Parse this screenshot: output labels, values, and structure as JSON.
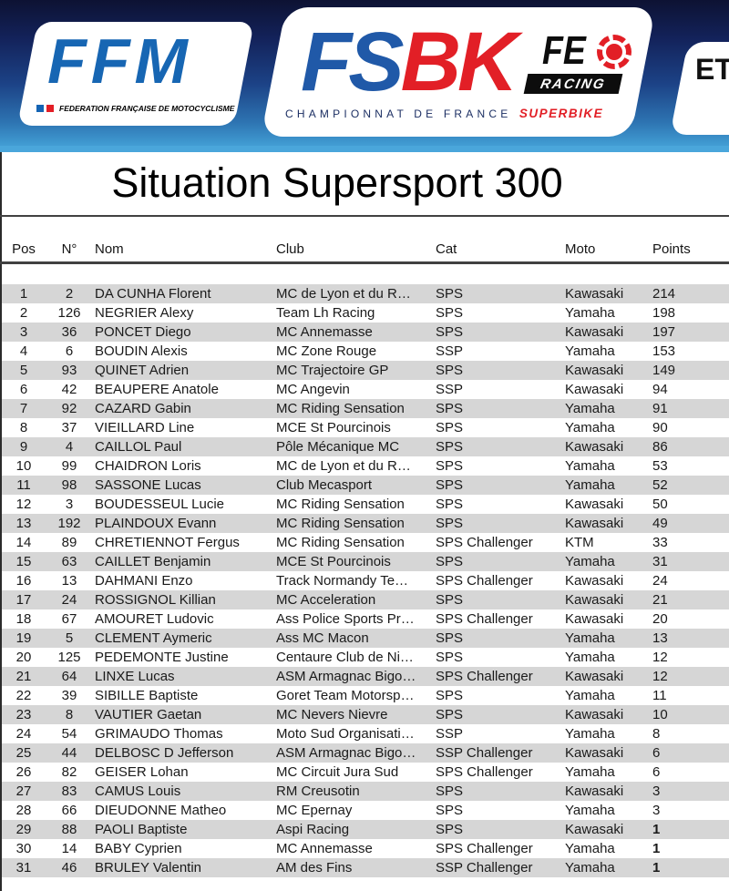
{
  "banner": {
    "ffm": {
      "logo_text": "FFM",
      "tagline": "FEDERATION FRANÇAISE DE MOTOCYCLISME"
    },
    "fsbk": {
      "fs": "FS",
      "bk": "BK",
      "fe": "FE",
      "racing": "RACING",
      "championnat": "CHAMPIONNAT DE FRANCE",
      "superbike": "SUPERBIKE"
    },
    "etape": {
      "label": "ET"
    },
    "colors": {
      "banner_top": "#0d1233",
      "banner_bottom": "#49a6db",
      "logo_blue": "#2059a8",
      "logo_red": "#e21f26"
    }
  },
  "title": "Situation Supersport 300",
  "table": {
    "headers": [
      "Pos",
      "N°",
      "Nom",
      "Club",
      "Cat",
      "Moto",
      "Points"
    ],
    "stripe_color": "#d6d6d6",
    "rows": [
      {
        "pos": 1,
        "num": 2,
        "name": "DA CUNHA Florent",
        "club": "MC de Lyon et du R…",
        "cat": "SPS",
        "moto": "Kawasaki",
        "points": 214,
        "points_bold": false
      },
      {
        "pos": 2,
        "num": 126,
        "name": "NEGRIER Alexy",
        "club": "Team Lh Racing",
        "cat": "SPS",
        "moto": "Yamaha",
        "points": 198,
        "points_bold": false
      },
      {
        "pos": 3,
        "num": 36,
        "name": "PONCET Diego",
        "club": "MC Annemasse",
        "cat": "SPS",
        "moto": "Kawasaki",
        "points": 197,
        "points_bold": false
      },
      {
        "pos": 4,
        "num": 6,
        "name": "BOUDIN Alexis",
        "club": "MC Zone Rouge",
        "cat": "SSP",
        "moto": "Yamaha",
        "points": 153,
        "points_bold": false
      },
      {
        "pos": 5,
        "num": 93,
        "name": "QUINET Adrien",
        "club": "MC Trajectoire GP",
        "cat": "SPS",
        "moto": "Kawasaki",
        "points": 149,
        "points_bold": false
      },
      {
        "pos": 6,
        "num": 42,
        "name": "BEAUPERE Anatole",
        "club": "MC Angevin",
        "cat": "SSP",
        "moto": "Kawasaki",
        "points": 94,
        "points_bold": false
      },
      {
        "pos": 7,
        "num": 92,
        "name": "CAZARD Gabin",
        "club": "MC Riding Sensation",
        "cat": "SPS",
        "moto": "Yamaha",
        "points": 91,
        "points_bold": false
      },
      {
        "pos": 8,
        "num": 37,
        "name": "VIEILLARD Line",
        "club": "MCE St Pourcinois",
        "cat": "SPS",
        "moto": "Yamaha",
        "points": 90,
        "points_bold": false
      },
      {
        "pos": 9,
        "num": 4,
        "name": "CAILLOL Paul",
        "club": "Pôle Mécanique MC",
        "cat": "SPS",
        "moto": "Kawasaki",
        "points": 86,
        "points_bold": false
      },
      {
        "pos": 10,
        "num": 99,
        "name": "CHAIDRON Loris",
        "club": "MC de Lyon et du R…",
        "cat": "SPS",
        "moto": "Yamaha",
        "points": 53,
        "points_bold": false
      },
      {
        "pos": 11,
        "num": 98,
        "name": "SASSONE Lucas",
        "club": "Club Mecasport",
        "cat": "SPS",
        "moto": "Yamaha",
        "points": 52,
        "points_bold": false
      },
      {
        "pos": 12,
        "num": 3,
        "name": "BOUDESSEUL Lucie",
        "club": "MC Riding Sensation",
        "cat": "SPS",
        "moto": "Kawasaki",
        "points": 50,
        "points_bold": false
      },
      {
        "pos": 13,
        "num": 192,
        "name": "PLAINDOUX Evann",
        "club": "MC Riding Sensation",
        "cat": "SPS",
        "moto": "Kawasaki",
        "points": 49,
        "points_bold": false
      },
      {
        "pos": 14,
        "num": 89,
        "name": "CHRETIENNOT Fergus",
        "club": "MC Riding Sensation",
        "cat": "SPS Challenger",
        "moto": "KTM",
        "points": 33,
        "points_bold": false
      },
      {
        "pos": 15,
        "num": 63,
        "name": "CAILLET Benjamin",
        "club": "MCE St Pourcinois",
        "cat": "SPS",
        "moto": "Yamaha",
        "points": 31,
        "points_bold": false
      },
      {
        "pos": 16,
        "num": 13,
        "name": "DAHMANI Enzo",
        "club": "Track Normandy Te…",
        "cat": "SPS Challenger",
        "moto": "Kawasaki",
        "points": 24,
        "points_bold": false
      },
      {
        "pos": 17,
        "num": 24,
        "name": "ROSSIGNOL Killian",
        "club": "MC Acceleration",
        "cat": "SPS",
        "moto": "Kawasaki",
        "points": 21,
        "points_bold": false
      },
      {
        "pos": 18,
        "num": 67,
        "name": "AMOURET Ludovic",
        "club": "Ass Police Sports Pr…",
        "cat": "SPS Challenger",
        "moto": "Kawasaki",
        "points": 20,
        "points_bold": false
      },
      {
        "pos": 19,
        "num": 5,
        "name": "CLEMENT Aymeric",
        "club": "Ass MC Macon",
        "cat": "SPS",
        "moto": "Yamaha",
        "points": 13,
        "points_bold": false
      },
      {
        "pos": 20,
        "num": 125,
        "name": "PEDEMONTE Justine",
        "club": "Centaure Club de Ni…",
        "cat": "SPS",
        "moto": "Yamaha",
        "points": 12,
        "points_bold": false
      },
      {
        "pos": 21,
        "num": 64,
        "name": "LINXE Lucas",
        "club": "ASM Armagnac Bigo…",
        "cat": "SPS Challenger",
        "moto": "Kawasaki",
        "points": 12,
        "points_bold": false
      },
      {
        "pos": 22,
        "num": 39,
        "name": "SIBILLE Baptiste",
        "club": "Goret Team Motorsp…",
        "cat": "SPS",
        "moto": "Yamaha",
        "points": 11,
        "points_bold": false
      },
      {
        "pos": 23,
        "num": 8,
        "name": "VAUTIER Gaetan",
        "club": "MC Nevers Nievre",
        "cat": "SPS",
        "moto": "Kawasaki",
        "points": 10,
        "points_bold": false
      },
      {
        "pos": 24,
        "num": 54,
        "name": "GRIMAUDO Thomas",
        "club": "Moto Sud Organisati…",
        "cat": "SSP",
        "moto": "Yamaha",
        "points": 8,
        "points_bold": false
      },
      {
        "pos": 25,
        "num": 44,
        "name": "DELBOSC D Jefferson",
        "club": "ASM Armagnac Bigo…",
        "cat": "SSP Challenger",
        "moto": "Kawasaki",
        "points": 6,
        "points_bold": false
      },
      {
        "pos": 26,
        "num": 82,
        "name": "GEISER Lohan",
        "club": "MC Circuit Jura Sud",
        "cat": "SPS Challenger",
        "moto": "Yamaha",
        "points": 6,
        "points_bold": false
      },
      {
        "pos": 27,
        "num": 83,
        "name": "CAMUS Louis",
        "club": "RM Creusotin",
        "cat": "SPS",
        "moto": "Kawasaki",
        "points": 3,
        "points_bold": false
      },
      {
        "pos": 28,
        "num": 66,
        "name": "DIEUDONNE Matheo",
        "club": "MC Epernay",
        "cat": "SPS",
        "moto": "Yamaha",
        "points": 3,
        "points_bold": false
      },
      {
        "pos": 29,
        "num": 88,
        "name": "PAOLI Baptiste",
        "club": "Aspi Racing",
        "cat": "SPS",
        "moto": "Kawasaki",
        "points": 1,
        "points_bold": true
      },
      {
        "pos": 30,
        "num": 14,
        "name": "BABY Cyprien",
        "club": "MC Annemasse",
        "cat": "SPS Challenger",
        "moto": "Yamaha",
        "points": 1,
        "points_bold": true
      },
      {
        "pos": 31,
        "num": 46,
        "name": "BRULEY Valentin",
        "club": "AM des Fins",
        "cat": "SSP Challenger",
        "moto": "Yamaha",
        "points": 1,
        "points_bold": true
      }
    ]
  }
}
